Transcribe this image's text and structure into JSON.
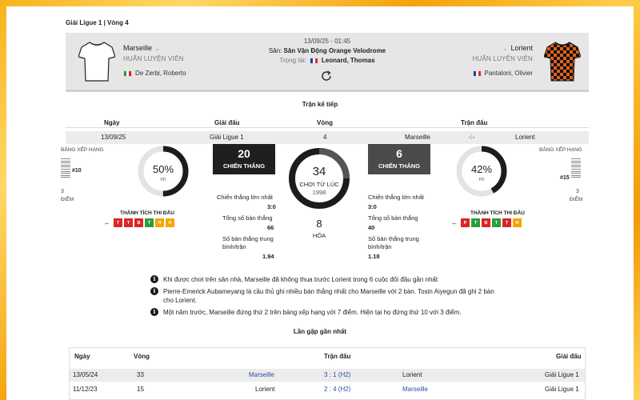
{
  "league_round": "Giải Ligue 1 | Vòng 4",
  "match": {
    "datetime": "13/09/25 - 01:45",
    "venue_label": "Sân:",
    "venue": "Sân Vận Động Orange Velodrome",
    "referee_label": "Trọng tài:",
    "referee": "Leonard, Thomas",
    "home": {
      "name": "Marseille",
      "coach_label": "HUẤN LUYỆN VIÊN",
      "coach": "De Zerbi, Roberto",
      "jersey_color": "#ffffff"
    },
    "away": {
      "name": "Lorient",
      "coach_label": "HUẤN LUYỆN VIÊN",
      "coach": "Pantaloni, Olivier",
      "jersey_color": "#e2601c"
    }
  },
  "next_match": {
    "title": "Trận kế tiếp",
    "headers": {
      "date": "Ngày",
      "league": "Giải đấu",
      "round": "Vòng",
      "match": "Trận đấu"
    },
    "row": {
      "date": "13/09/25",
      "league": "Giải Ligue 1",
      "round": "4",
      "home": "Marseille",
      "score": "-:-",
      "away": "Lorient"
    }
  },
  "stats": {
    "home": {
      "ranking_label": "BẢNG XẾP HẠNG",
      "rank": "#10",
      "points": "3",
      "points_label": "ĐIỂM",
      "win_rate": "50%",
      "win_rate_fraction": 0.5,
      "win_rate_sub": "PD",
      "form_title": "THÀNH TÍCH THI ĐẤU",
      "form": [
        {
          "r": "T",
          "color": "#d9262a"
        },
        {
          "r": "T",
          "color": "#d9262a"
        },
        {
          "r": "B",
          "color": "#d9262a"
        },
        {
          "r": "T",
          "color": "#2e9d3b"
        },
        {
          "r": "H",
          "color": "#f5a400"
        },
        {
          "r": "H",
          "color": "#f5a400"
        }
      ],
      "wins": "20",
      "wins_label": "CHIẾN THẮNG",
      "biggest_win_label": "Chiến thắng lớn nhất",
      "biggest_win": "3:0",
      "total_goals_label": "Tổng số bàn thắng",
      "total_goals": "66",
      "avg_goals_label": "Số bàn thắng trung bình/trận",
      "avg_goals": "1.94"
    },
    "away": {
      "ranking_label": "BẢNG XẾP HẠNG",
      "rank": "#15",
      "points": "3",
      "points_label": "ĐIỂM",
      "win_rate": "42%",
      "win_rate_fraction": 0.42,
      "win_rate_sub": "PD",
      "form_title": "THÀNH TÍCH THI ĐẤU",
      "form": [
        {
          "r": "P",
          "color": "#d9262a"
        },
        {
          "r": "T",
          "color": "#2e9d3b"
        },
        {
          "r": "B",
          "color": "#d9262a"
        },
        {
          "r": "T",
          "color": "#2e9d3b"
        },
        {
          "r": "T",
          "color": "#d9262a"
        },
        {
          "r": "H",
          "color": "#f5a400"
        }
      ],
      "wins": "6",
      "wins_label": "CHIẾN THẮNG",
      "biggest_win_label": "Chiến thắng lớn nhất",
      "biggest_win": "3:0",
      "total_goals_label": "Tổng số bàn thắng",
      "total_goals": "40",
      "avg_goals_label": "Số bàn thắng trung bình/trận",
      "avg_goals": "1.18"
    },
    "played": "34",
    "played_label": "CHƠI TỪ LÚC",
    "since": "1998",
    "draws": "8",
    "draws_label": "HÒA"
  },
  "facts": [
    "Khi được chơi trên sân nhà, Marseille đã không thua trước Lorient trong 6 cuộc đối đầu gần nhất",
    "Pierre-Emerick Aubameyang là cầu thủ ghi nhiều bàn thắng nhất cho Marseille với 2 bàn. Tosin Aiyegun đã ghi 2 bàn cho Lorient.",
    "Một năm trước, Marseille đứng thứ 2 trên bảng xếp hạng với 7 điểm. Hiện tại họ đứng thứ 10 với 3 điểm."
  ],
  "h2h": {
    "title": "Lần gặp gần nhất",
    "headers": {
      "date": "Ngày",
      "round": "Vòng",
      "match": "Trận đấu",
      "league": "Giải đấu"
    },
    "rows": [
      {
        "date": "13/05/24",
        "round": "33",
        "home": "Marseille",
        "score": "3 : 1 (H2)",
        "away": "Lorient",
        "league": "Giải Ligue 1"
      },
      {
        "date": "11/12/23",
        "round": "15",
        "home": "Lorient",
        "score": "2 : 4 (H2)",
        "away": "Marseille",
        "league": "Giải Ligue 1"
      }
    ]
  }
}
